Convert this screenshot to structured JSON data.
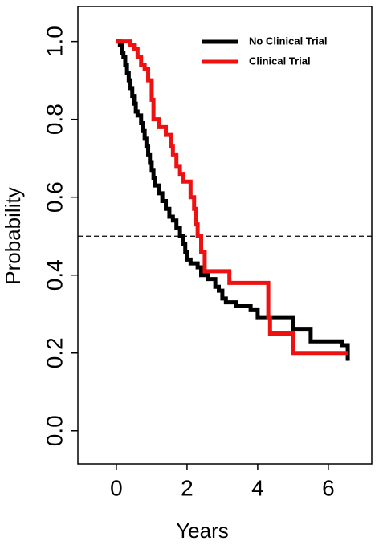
{
  "chart_data": {
    "type": "line",
    "step": "post",
    "xlabel": "Years",
    "ylabel": "Probability",
    "xlim": [
      -1.09,
      7.23
    ],
    "ylim": [
      -0.085,
      1.09
    ],
    "xticks": [
      0,
      2,
      4,
      6
    ],
    "yticks": [
      {
        "value": 0,
        "label": "0.0"
      },
      0.2,
      0.4,
      0.6,
      0.8,
      {
        "value": 1,
        "label": "1.0"
      }
    ],
    "hline": 0.5,
    "legend": "top-right",
    "series": [
      {
        "name": "No Clinical Trial",
        "color": "#000000",
        "x": [
          0,
          0.1,
          0.15,
          0.2,
          0.25,
          0.3,
          0.35,
          0.4,
          0.45,
          0.5,
          0.55,
          0.6,
          0.7,
          0.75,
          0.8,
          0.85,
          0.9,
          0.95,
          1.0,
          1.05,
          1.1,
          1.2,
          1.3,
          1.4,
          1.5,
          1.6,
          1.7,
          1.8,
          1.9,
          1.95,
          2.0,
          2.1,
          2.3,
          2.4,
          2.6,
          2.8,
          2.9,
          3.0,
          3.1,
          3.4,
          3.8,
          4.0,
          5.0,
          5.5,
          6.4,
          6.55
        ],
        "values": [
          1.0,
          0.99,
          0.97,
          0.96,
          0.94,
          0.92,
          0.9,
          0.88,
          0.86,
          0.84,
          0.82,
          0.81,
          0.79,
          0.77,
          0.75,
          0.73,
          0.71,
          0.69,
          0.67,
          0.65,
          0.63,
          0.61,
          0.59,
          0.57,
          0.55,
          0.54,
          0.52,
          0.5,
          0.48,
          0.46,
          0.44,
          0.43,
          0.42,
          0.4,
          0.39,
          0.37,
          0.36,
          0.34,
          0.33,
          0.32,
          0.31,
          0.29,
          0.26,
          0.23,
          0.22,
          0.18
        ]
      },
      {
        "name": "Clinical Trial",
        "color": "#ee1111",
        "x": [
          0,
          0.4,
          0.5,
          0.6,
          0.7,
          0.8,
          0.9,
          1.0,
          1.05,
          1.2,
          1.4,
          1.55,
          1.6,
          1.7,
          1.8,
          1.9,
          2.1,
          2.2,
          2.25,
          2.3,
          2.4,
          2.5,
          3.2,
          4.3,
          4.35,
          5.0,
          6.55
        ],
        "values": [
          1.0,
          0.99,
          0.98,
          0.96,
          0.94,
          0.93,
          0.9,
          0.85,
          0.8,
          0.78,
          0.76,
          0.73,
          0.71,
          0.68,
          0.66,
          0.64,
          0.6,
          0.57,
          0.53,
          0.5,
          0.46,
          0.41,
          0.38,
          0.29,
          0.25,
          0.2,
          0.2
        ]
      }
    ]
  }
}
